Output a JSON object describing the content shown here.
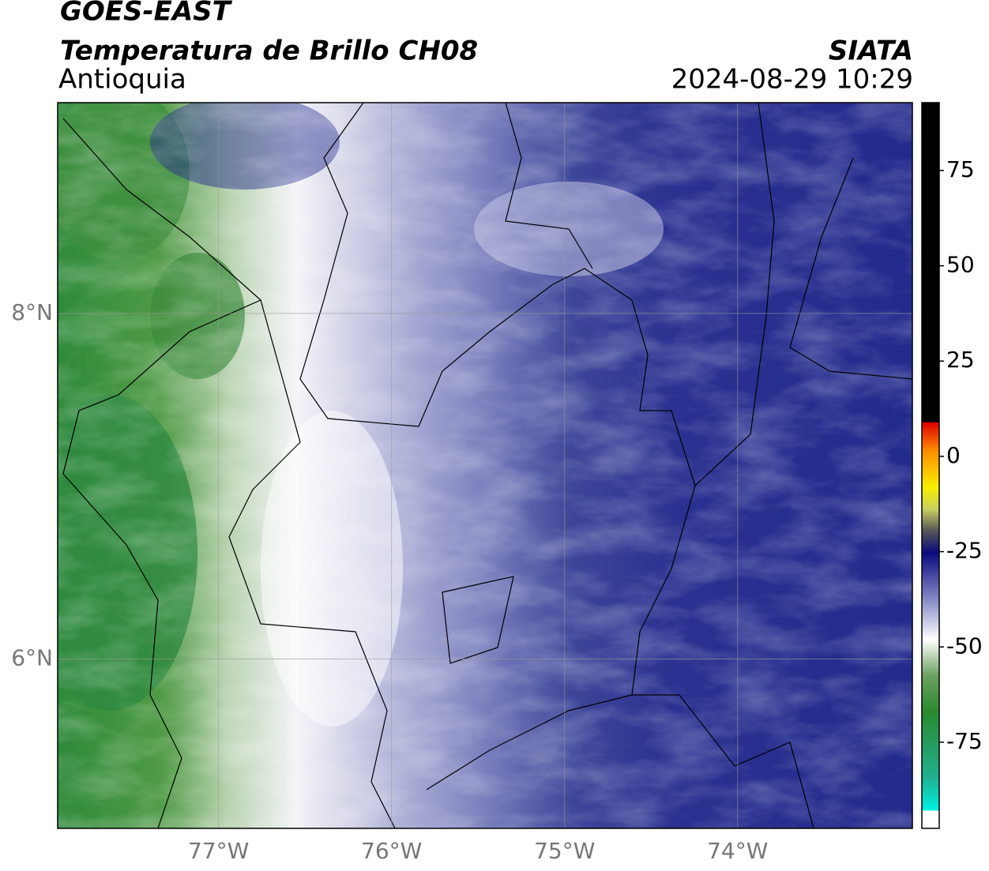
{
  "map": {
    "title": "GOES-EAST",
    "subtitle": "Temperatura de Brillo CH08",
    "region": "Antioquia",
    "source": "SIATA",
    "datetime": "2024-08-29 10:29",
    "xlim": [
      -77.93,
      -72.99
    ],
    "ylim": [
      5.02,
      9.22
    ],
    "xticks": [
      {
        "value": -77,
        "label": "77°W"
      },
      {
        "value": -76,
        "label": "76°W"
      },
      {
        "value": -75,
        "label": "75°W"
      },
      {
        "value": -74,
        "label": "74°W"
      }
    ],
    "yticks": [
      {
        "value": 8,
        "label": "8°N"
      },
      {
        "value": 6,
        "label": "6°N"
      }
    ],
    "grid": true
  },
  "colorbar": {
    "lim": [
      -97.6,
      92.8
    ],
    "ticks": [
      75,
      50,
      25,
      0,
      -25,
      -50,
      -75
    ]
  }
}
